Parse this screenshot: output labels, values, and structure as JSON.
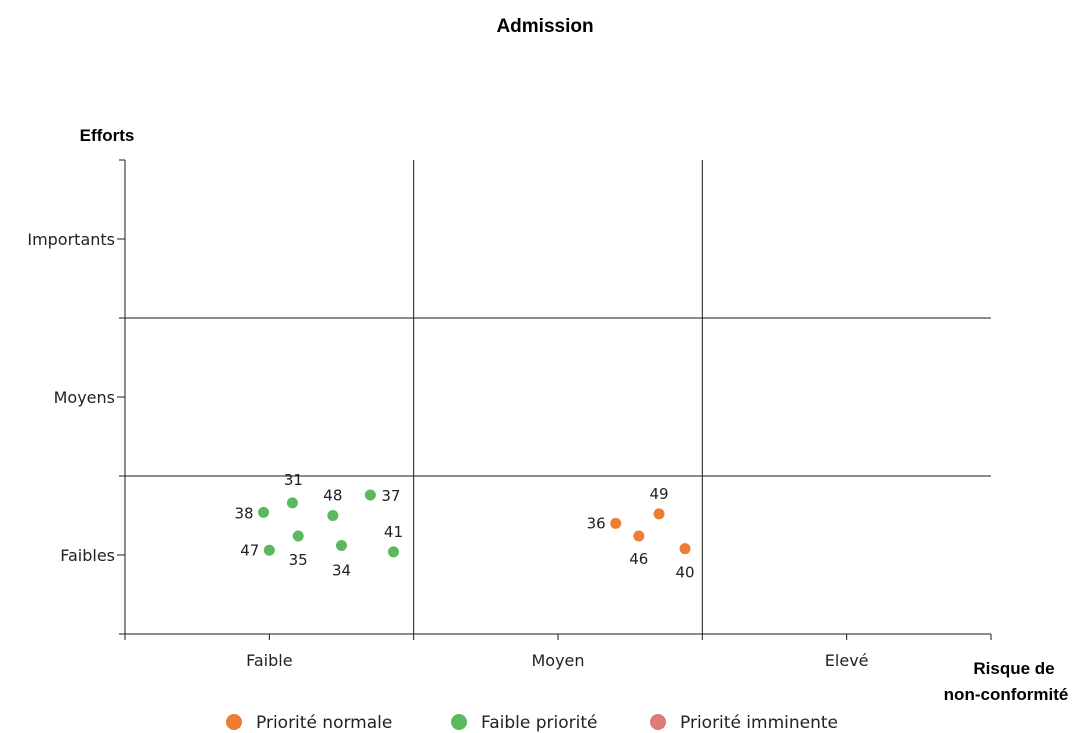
{
  "chart_data": {
    "type": "scatter",
    "title": "Admission",
    "xlabel": "Risque de non-conformité",
    "xlabel_lines": [
      "Risque de",
      "non-conformité"
    ],
    "ylabel": "Efforts",
    "x_categories": [
      "Faible",
      "Moyen",
      "Elevé"
    ],
    "y_categories": [
      "Faibles",
      "Moyens",
      "Importants"
    ],
    "xlim": [
      0,
      3
    ],
    "ylim": [
      0,
      3
    ],
    "grid": true,
    "legend_position": "bottom",
    "series": [
      {
        "name": "Priorité normale",
        "color": "#ED7D31",
        "points": [
          {
            "label": "36",
            "x": 1.7,
            "y": 0.7
          },
          {
            "label": "49",
            "x": 1.85,
            "y": 0.76
          },
          {
            "label": "46",
            "x": 1.78,
            "y": 0.62
          },
          {
            "label": "40",
            "x": 1.94,
            "y": 0.54
          }
        ]
      },
      {
        "name": "Faible priorité",
        "color": "#5CB85C",
        "points": [
          {
            "label": "38",
            "x": 0.48,
            "y": 0.77
          },
          {
            "label": "31",
            "x": 0.58,
            "y": 0.83
          },
          {
            "label": "48",
            "x": 0.72,
            "y": 0.75
          },
          {
            "label": "37",
            "x": 0.85,
            "y": 0.88
          },
          {
            "label": "47",
            "x": 0.5,
            "y": 0.53
          },
          {
            "label": "35",
            "x": 0.6,
            "y": 0.62
          },
          {
            "label": "34",
            "x": 0.75,
            "y": 0.56
          },
          {
            "label": "41",
            "x": 0.93,
            "y": 0.52
          }
        ]
      },
      {
        "name": "Priorité imminente",
        "color": "#DA7C78",
        "points": []
      }
    ]
  }
}
